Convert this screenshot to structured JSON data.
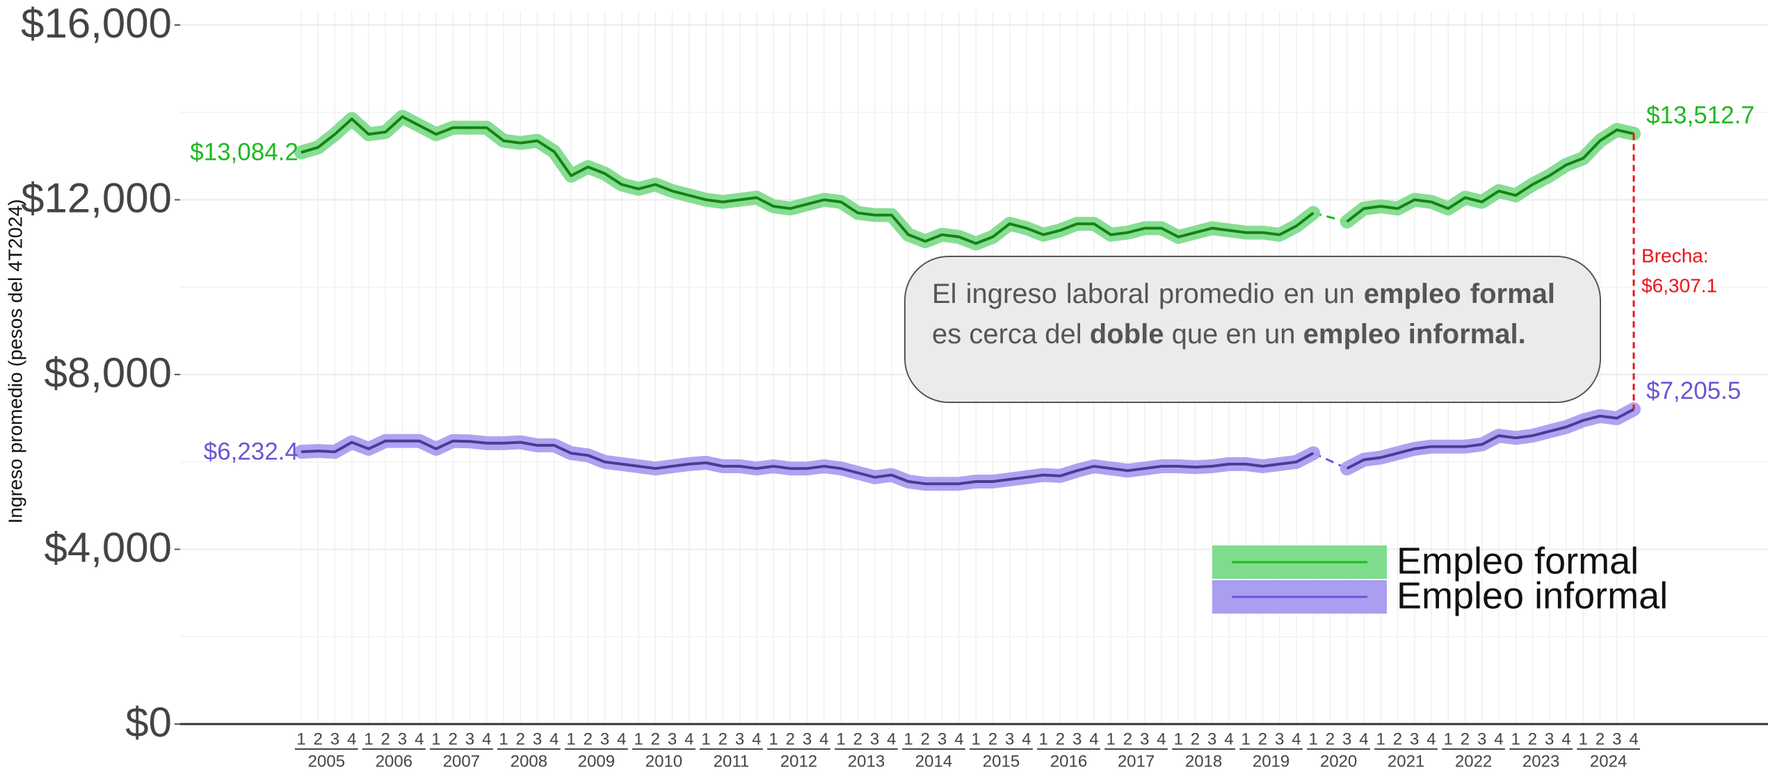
{
  "chart_data": {
    "type": "line",
    "y_label": "Ingreso promedio (pesos del 4T2024)",
    "categories": [
      "1",
      "2",
      "3",
      "4",
      "1",
      "2",
      "3",
      "4",
      "1",
      "2",
      "3",
      "4",
      "1",
      "2",
      "3",
      "4",
      "1",
      "2",
      "3",
      "4",
      "1",
      "2",
      "3",
      "4",
      "1",
      "2",
      "3",
      "4",
      "1",
      "2",
      "3",
      "4",
      "1",
      "2",
      "3",
      "4",
      "1",
      "2",
      "3",
      "4",
      "1",
      "2",
      "3",
      "4",
      "1",
      "2",
      "3",
      "4",
      "1",
      "2",
      "3",
      "4",
      "1",
      "2",
      "3",
      "4",
      "1",
      "2",
      "3",
      "4",
      "1",
      "2",
      "3",
      "4",
      "1",
      "2",
      "3",
      "4",
      "1",
      "2",
      "3",
      "4",
      "1",
      "2",
      "3",
      "4",
      "1",
      "2",
      "3",
      "4"
    ],
    "years": [
      "2005",
      "2006",
      "2007",
      "2008",
      "2009",
      "2010",
      "2011",
      "2012",
      "2013",
      "2014",
      "2015",
      "2016",
      "2017",
      "2018",
      "2019",
      "2020",
      "2021",
      "2022",
      "2023",
      "2024"
    ],
    "ylim": [
      0,
      16000
    ],
    "yticks": [
      {
        "value": 0,
        "label": "$0"
      },
      {
        "value": 4000,
        "label": "$4,000"
      },
      {
        "value": 8000,
        "label": "$8,000"
      },
      {
        "value": 12000,
        "label": "$12,000"
      },
      {
        "value": 16000,
        "label": "$16,000"
      }
    ],
    "minor_yticks": [
      2000,
      6000,
      10000,
      14000
    ],
    "grid": true,
    "legend": "bottom-right",
    "series": [
      {
        "name": "Empleo formal",
        "color": "#1fb81f",
        "band_color": "#7fdc8c",
        "values": [
          13084.2,
          13200,
          13500,
          13850,
          13500,
          13550,
          13900,
          13700,
          13500,
          13650,
          13650,
          13650,
          13350,
          13300,
          13350,
          13100,
          12550,
          12750,
          12600,
          12350,
          12250,
          12350,
          12200,
          12100,
          12000,
          11950,
          12000,
          12050,
          11850,
          11800,
          11900,
          12000,
          11950,
          11700,
          11650,
          11650,
          11200,
          11050,
          11200,
          11150,
          11000,
          11150,
          11450,
          11350,
          11200,
          11300,
          11450,
          11450,
          11200,
          11250,
          11350,
          11350,
          11150,
          11250,
          11350,
          11300,
          11250,
          11250,
          11200,
          11400,
          11700,
          null,
          11500,
          11800,
          11850,
          11800,
          12000,
          11950,
          11800,
          12050,
          11950,
          12200,
          12100,
          12350,
          12550,
          12800,
          12950,
          13350,
          13600,
          13512.7
        ],
        "value_labels": [
          "$13,084.2",
          null,
          null,
          null,
          null,
          null,
          null,
          null,
          null,
          null,
          null,
          null,
          null,
          null,
          null,
          null,
          null,
          null,
          null,
          null,
          null,
          null,
          null,
          null,
          null,
          null,
          null,
          null,
          null,
          null,
          null,
          null,
          null,
          null,
          null,
          null,
          null,
          null,
          null,
          null,
          null,
          null,
          null,
          null,
          null,
          null,
          null,
          null,
          null,
          null,
          null,
          null,
          null,
          null,
          null,
          null,
          null,
          null,
          null,
          null,
          null,
          null,
          null,
          null,
          null,
          null,
          null,
          null,
          null,
          null,
          null,
          null,
          null,
          null,
          null,
          null,
          null,
          null,
          null,
          "$13,512.7"
        ]
      },
      {
        "name": "Empleo informal",
        "color": "#6a55d6",
        "band_color": "#a99ef0",
        "values": [
          6232.4,
          6250,
          6230,
          6450,
          6300,
          6480,
          6480,
          6480,
          6300,
          6480,
          6470,
          6430,
          6430,
          6450,
          6380,
          6380,
          6200,
          6150,
          6000,
          5950,
          5900,
          5850,
          5900,
          5950,
          5980,
          5900,
          5900,
          5850,
          5900,
          5850,
          5850,
          5900,
          5850,
          5750,
          5650,
          5700,
          5550,
          5500,
          5500,
          5500,
          5550,
          5550,
          5600,
          5650,
          5700,
          5680,
          5800,
          5900,
          5850,
          5800,
          5850,
          5900,
          5900,
          5880,
          5900,
          5950,
          5950,
          5900,
          5950,
          6000,
          6200,
          null,
          5850,
          6050,
          6100,
          6200,
          6300,
          6350,
          6350,
          6350,
          6400,
          6600,
          6550,
          6600,
          6700,
          6800,
          6950,
          7050,
          7000,
          7205.5
        ],
        "value_labels": [
          "$6,232.4",
          null,
          null,
          null,
          null,
          null,
          null,
          null,
          null,
          null,
          null,
          null,
          null,
          null,
          null,
          null,
          null,
          null,
          null,
          null,
          null,
          null,
          null,
          null,
          null,
          null,
          null,
          null,
          null,
          null,
          null,
          null,
          null,
          null,
          null,
          null,
          null,
          null,
          null,
          null,
          null,
          null,
          null,
          null,
          null,
          null,
          null,
          null,
          null,
          null,
          null,
          null,
          null,
          null,
          null,
          null,
          null,
          null,
          null,
          null,
          null,
          null,
          null,
          null,
          null,
          null,
          null,
          null,
          null,
          null,
          null,
          null,
          null,
          null,
          null,
          null,
          null,
          null,
          null,
          "$7,205.5"
        ]
      }
    ],
    "gap": {
      "label": "Brecha:",
      "value": 6307.1,
      "value_label": "$6,307.1",
      "color": "#e8141c"
    },
    "callout": {
      "segments": [
        {
          "text": "El ingreso laboral promedio en un "
        },
        {
          "text": "empleo formal",
          "bold": true
        },
        {
          "text": " es cerca del "
        },
        {
          "text": "doble",
          "bold": true
        },
        {
          "text": " que en un "
        },
        {
          "text": "empleo informal.",
          "bold": true
        }
      ]
    }
  }
}
